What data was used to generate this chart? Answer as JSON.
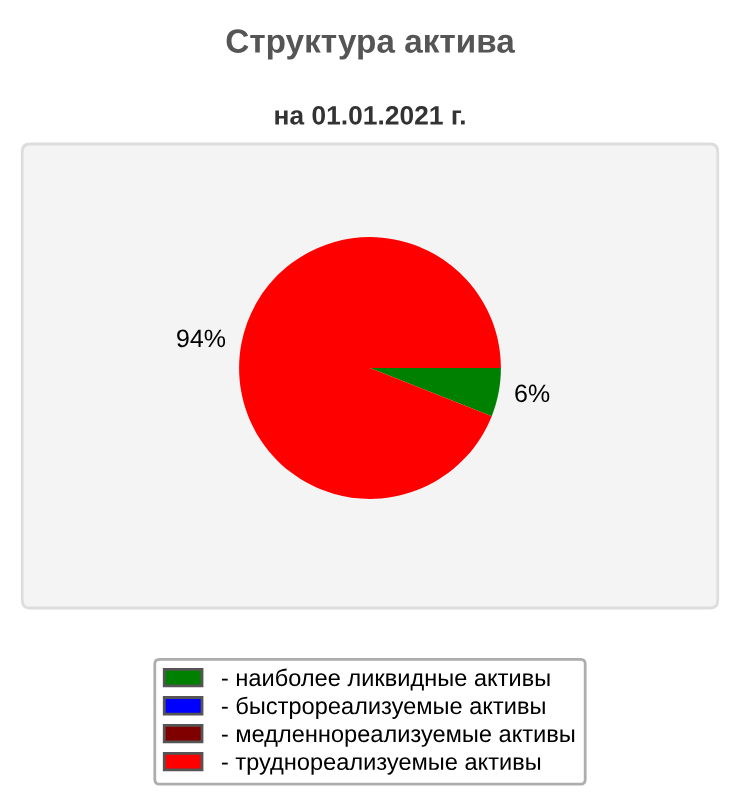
{
  "chart_data": {
    "type": "pie",
    "title": "Структура актива",
    "subtitle": "на 01.01.2021 г.",
    "categories": [
      "- наиболее ликвидные активы",
      "- быстрореализуемые активы",
      "- медленнореализуемые активы",
      "- труднореализуемые активы"
    ],
    "values": [
      6,
      0,
      0,
      94
    ],
    "colors": [
      "#008000",
      "#0000ff",
      "#800000",
      "#ff0000"
    ],
    "value_labels": [
      "6%",
      null,
      null,
      "94%"
    ],
    "legend": "bottom"
  }
}
